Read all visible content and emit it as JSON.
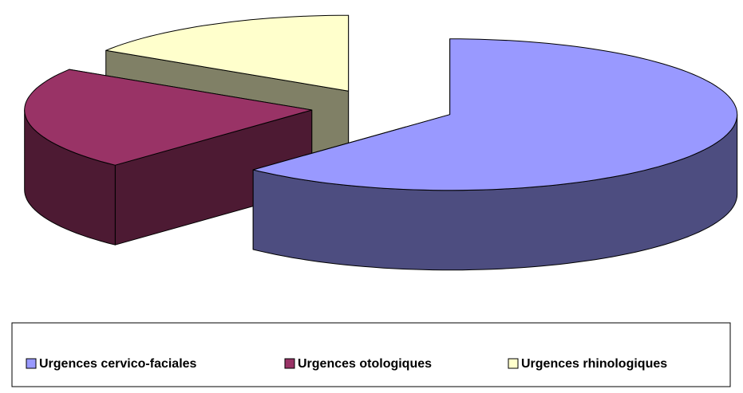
{
  "chart_data": {
    "type": "pie",
    "categories": [
      "Urgences cervico-faciales",
      "Urgences otologiques",
      "Urgences rhinologiques"
    ],
    "values": [
      62,
      22,
      16
    ],
    "colors": [
      "#9999ff",
      "#993366",
      "#ffffcc"
    ],
    "legend": "bottom"
  }
}
